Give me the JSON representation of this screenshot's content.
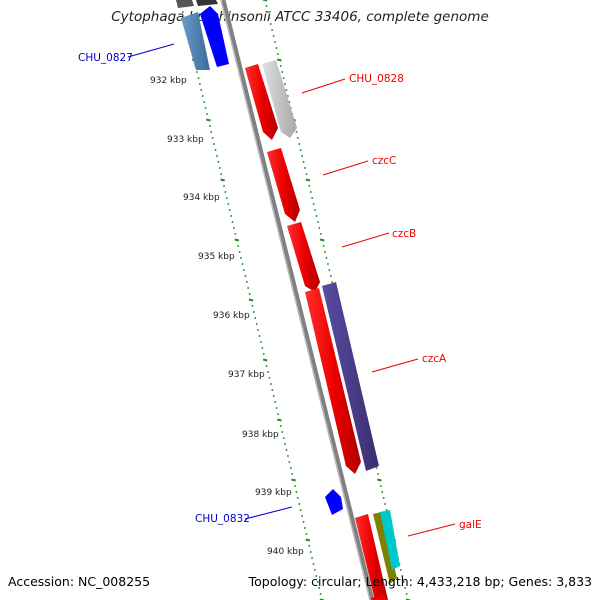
{
  "title": "Cytophaga hutchinsonii ATCC 33406, complete genome",
  "footer": {
    "accession": "Accession: NC_008255",
    "summary": "Topology: circular; Length: 4,433,218 bp; Genes: 3,833"
  },
  "ruler": {
    "labels": [
      "932 kbp",
      "933 kbp",
      "934 kbp",
      "935 kbp",
      "936 kbp",
      "937 kbp",
      "938 kbp",
      "939 kbp",
      "940 kbp"
    ]
  },
  "genes": {
    "forward": [
      {
        "name": "CHU_0828",
        "color": "#c0c0c0"
      },
      {
        "name": "czcC",
        "color": "#ff0000"
      },
      {
        "name": "czcB",
        "color": "#ff0000"
      },
      {
        "name": "czcA",
        "color": "#4b3d8c"
      },
      {
        "name": "galE",
        "color": "#ff0000"
      }
    ],
    "reverse": [
      {
        "name": "CHU_0827",
        "color": "#4a7fb5"
      },
      {
        "name": "CHU_0832",
        "color": "#0000ff"
      }
    ]
  },
  "colors": {
    "label_forward": "#ee0000",
    "label_reverse": "#0000cc",
    "tick": "#228b22",
    "backbone": "#808080",
    "blue_gene": "#0000ff",
    "olive_gene": "#808000",
    "cyan_gene": "#00c8c8"
  }
}
